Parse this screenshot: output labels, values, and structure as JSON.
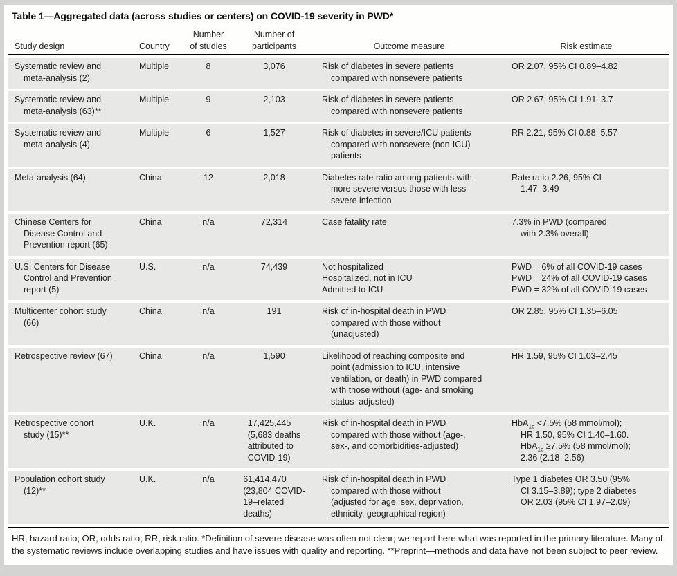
{
  "colors": {
    "frame_gray": "#d4d4d2",
    "sheet_white": "#fefefd",
    "row_stripe_gray": "#e8e8e6",
    "rule_black": "#000000",
    "text": "#1e1e1e"
  },
  "table": {
    "title": "Table 1—Aggregated data (across studies or centers) on COVID-19 severity in PWD*",
    "columns": [
      {
        "id": "study-design",
        "lines": [
          "Study design"
        ]
      },
      {
        "id": "country",
        "lines": [
          "Country"
        ]
      },
      {
        "id": "number-of-studies",
        "lines": [
          "Number",
          "of studies"
        ]
      },
      {
        "id": "number-of-participants",
        "lines": [
          "Number of",
          "participants"
        ]
      },
      {
        "id": "outcome-measure",
        "lines": [
          "Outcome measure"
        ]
      },
      {
        "id": "risk-estimate",
        "lines": [
          "Risk estimate"
        ]
      }
    ],
    "rows": [
      {
        "study": [
          {
            "t": "Systematic review and"
          },
          {
            "t": "meta-analysis (2)",
            "ind": true
          }
        ],
        "country": "Multiple",
        "num_studies": "8",
        "participants": [
          {
            "t": "3,076"
          }
        ],
        "outcome": [
          {
            "t": "Risk of diabetes in severe patients"
          },
          {
            "t": "compared with nonsevere patients",
            "ind": true
          }
        ],
        "risk": [
          {
            "t": "OR 2.07, 95% CI 0.89–4.82"
          }
        ]
      },
      {
        "study": [
          {
            "t": "Systematic review and"
          },
          {
            "t": "meta-analysis (63)**",
            "ind": true
          }
        ],
        "country": "Multiple",
        "num_studies": "9",
        "participants": [
          {
            "t": "2,103"
          }
        ],
        "outcome": [
          {
            "t": "Risk of diabetes in severe patients"
          },
          {
            "t": "compared with nonsevere patients",
            "ind": true
          }
        ],
        "risk": [
          {
            "t": "OR 2.67, 95% CI 1.91–3.7"
          }
        ]
      },
      {
        "study": [
          {
            "t": "Systematic review and"
          },
          {
            "t": "meta-analysis (4)",
            "ind": true
          }
        ],
        "country": "Multiple",
        "num_studies": "6",
        "participants": [
          {
            "t": "1,527"
          }
        ],
        "outcome": [
          {
            "t": "Risk of diabetes in severe/ICU patients"
          },
          {
            "t": "compared with nonsevere (non-ICU)",
            "ind": true
          },
          {
            "t": "patients",
            "ind": true
          }
        ],
        "risk": [
          {
            "t": "RR 2.21, 95% CI 0.88–5.57"
          }
        ]
      },
      {
        "study": [
          {
            "t": "Meta-analysis (64)"
          }
        ],
        "country": "China",
        "num_studies": "12",
        "participants": [
          {
            "t": "2,018"
          }
        ],
        "outcome": [
          {
            "t": "Diabetes rate ratio among patients with"
          },
          {
            "t": "more severe versus those with less",
            "ind": true
          },
          {
            "t": "severe infection",
            "ind": true
          }
        ],
        "risk": [
          {
            "t": "Rate ratio 2.26, 95% CI"
          },
          {
            "t": "1.47–3.49",
            "ind": true
          }
        ]
      },
      {
        "study": [
          {
            "t": "Chinese Centers for"
          },
          {
            "t": "Disease Control and",
            "ind": true
          },
          {
            "t": "Prevention report (65)",
            "ind": true
          }
        ],
        "country": "China",
        "num_studies": "n/a",
        "participants": [
          {
            "t": "72,314"
          }
        ],
        "outcome": [
          {
            "t": "Case fatality rate"
          }
        ],
        "risk": [
          {
            "t": "7.3% in PWD (compared"
          },
          {
            "t": "with 2.3% overall)",
            "ind": true
          }
        ]
      },
      {
        "study": [
          {
            "t": "U.S. Centers for Disease"
          },
          {
            "t": "Control and Prevention",
            "ind": true
          },
          {
            "t": "report (5)",
            "ind": true
          }
        ],
        "country": "U.S.",
        "num_studies": "n/a",
        "participants": [
          {
            "t": "74,439"
          }
        ],
        "outcome": [
          {
            "t": "Not hospitalized"
          },
          {
            "t": "Hospitalized, not in ICU"
          },
          {
            "t": "Admitted to ICU"
          }
        ],
        "risk": [
          {
            "t": "PWD = 6% of all COVID-19 cases"
          },
          {
            "t": "PWD = 24% of all COVID-19 cases"
          },
          {
            "t": "PWD = 32% of all COVID-19 cases"
          }
        ]
      },
      {
        "study": [
          {
            "t": "Multicenter cohort study"
          },
          {
            "t": "(66)",
            "ind": true
          }
        ],
        "country": "China",
        "num_studies": "n/a",
        "participants": [
          {
            "t": "191"
          }
        ],
        "outcome": [
          {
            "t": "Risk of in-hospital death in PWD"
          },
          {
            "t": "compared with those without",
            "ind": true
          },
          {
            "t": "(unadjusted)",
            "ind": true
          }
        ],
        "risk": [
          {
            "t": "OR 2.85, 95% CI 1.35–6.05"
          }
        ]
      },
      {
        "study": [
          {
            "t": "Retrospective review (67)"
          }
        ],
        "country": "China",
        "num_studies": "n/a",
        "participants": [
          {
            "t": "1,590"
          }
        ],
        "outcome": [
          {
            "t": "Likelihood of reaching composite end"
          },
          {
            "t": "point (admission to ICU, intensive",
            "ind": true
          },
          {
            "t": "ventilation, or death) in PWD compared",
            "ind": true
          },
          {
            "t": "with those without (age- and smoking",
            "ind": true
          },
          {
            "t": "status–adjusted)",
            "ind": true
          }
        ],
        "risk": [
          {
            "t": "HR 1.59, 95% CI 1.03–2.45"
          }
        ]
      },
      {
        "study": [
          {
            "t": "Retrospective cohort"
          },
          {
            "t": "study (15)**",
            "ind": true
          }
        ],
        "country": "U.K.",
        "num_studies": "n/a",
        "participants": [
          {
            "t": "17,425,445"
          },
          {
            "t": "(5,683 deaths"
          },
          {
            "t": "attributed to"
          },
          {
            "t": "COVID-19)"
          }
        ],
        "outcome": [
          {
            "t": "Risk of in-hospital death in PWD"
          },
          {
            "t": "compared with those without (age-,",
            "ind": true
          },
          {
            "t": "sex-, and comorbidities-adjusted)",
            "ind": true
          }
        ],
        "risk": [
          {
            "t": "HbA~1c~ <7.5% (58 mmol/mol);"
          },
          {
            "t": "HR 1.50, 95% CI 1.40–1.60.",
            "ind": true
          },
          {
            "t": "HbA~1c~ ≥7.5% (58 mmol/mol);",
            "ind": true
          },
          {
            "t": "2.36 (2.18–2.56)",
            "ind": true
          }
        ]
      },
      {
        "study": [
          {
            "t": "Population cohort study"
          },
          {
            "t": "(12)**",
            "ind": true
          }
        ],
        "country": "U.K.",
        "num_studies": "n/a",
        "participants": [
          {
            "t": "61,414,470"
          },
          {
            "t": "(23,804 COVID-"
          },
          {
            "t": "19–related"
          },
          {
            "t": "deaths)"
          }
        ],
        "outcome": [
          {
            "t": "Risk of in-hospital death in PWD"
          },
          {
            "t": "compared with those without",
            "ind": true
          },
          {
            "t": "(adjusted for age, sex, deprivation,",
            "ind": true
          },
          {
            "t": "ethnicity, geographical region)",
            "ind": true
          }
        ],
        "risk": [
          {
            "t": "Type 1 diabetes OR 3.50 (95%"
          },
          {
            "t": "CI 3.15–3.89); type 2 diabetes",
            "ind": true
          },
          {
            "t": "OR 2.03 (95% CI 1.97–2.09)",
            "ind": true
          }
        ]
      }
    ],
    "footnote": "HR, hazard ratio; OR, odds ratio; RR, risk ratio. *Definition of severe disease was often not clear; we report here what was reported in the primary literature. Many of the systematic reviews include overlapping studies and have issues with quality and reporting. **Preprint—methods and data have not been subject to peer review."
  }
}
